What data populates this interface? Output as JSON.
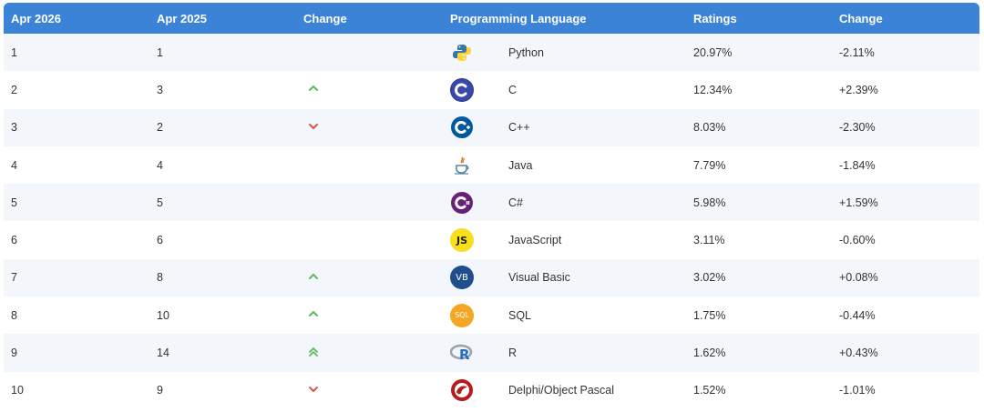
{
  "header": {
    "col_apr2026": "Apr 2026",
    "col_apr2025": "Apr 2025",
    "col_change": "Change",
    "col_language": "Programming Language",
    "col_ratings": "Ratings",
    "col_change2": "Change"
  },
  "colors": {
    "header_bg": "#3b83d6",
    "up_arrow": "#5cb85c",
    "down_arrow": "#d9534f"
  },
  "rows": [
    {
      "rank_2026": "1",
      "rank_2025": "1",
      "trend": "none",
      "language": "Python",
      "icon": "python-icon",
      "rating": "20.97%",
      "change": "-2.11%"
    },
    {
      "rank_2026": "2",
      "rank_2025": "3",
      "trend": "up",
      "language": "C",
      "icon": "c-icon",
      "rating": "12.34%",
      "change": "+2.39%"
    },
    {
      "rank_2026": "3",
      "rank_2025": "2",
      "trend": "down",
      "language": "C++",
      "icon": "cpp-icon",
      "rating": "8.03%",
      "change": "-2.30%"
    },
    {
      "rank_2026": "4",
      "rank_2025": "4",
      "trend": "none",
      "language": "Java",
      "icon": "java-icon",
      "rating": "7.79%",
      "change": "-1.84%"
    },
    {
      "rank_2026": "5",
      "rank_2025": "5",
      "trend": "none",
      "language": "C#",
      "icon": "csharp-icon",
      "rating": "5.98%",
      "change": "+1.59%"
    },
    {
      "rank_2026": "6",
      "rank_2025": "6",
      "trend": "none",
      "language": "JavaScript",
      "icon": "javascript-icon",
      "rating": "3.11%",
      "change": "-0.60%"
    },
    {
      "rank_2026": "7",
      "rank_2025": "8",
      "trend": "up",
      "language": "Visual Basic",
      "icon": "visual-basic-icon",
      "rating": "3.02%",
      "change": "+0.08%"
    },
    {
      "rank_2026": "8",
      "rank_2025": "10",
      "trend": "up",
      "language": "SQL",
      "icon": "sql-icon",
      "rating": "1.75%",
      "change": "-0.44%"
    },
    {
      "rank_2026": "9",
      "rank_2025": "14",
      "trend": "double-up",
      "language": "R",
      "icon": "r-icon",
      "rating": "1.62%",
      "change": "+0.43%"
    },
    {
      "rank_2026": "10",
      "rank_2025": "9",
      "trend": "down",
      "language": "Delphi/Object Pascal",
      "icon": "delphi-icon",
      "rating": "1.52%",
      "change": "-1.01%"
    }
  ],
  "logo_text": {
    "javascript": "JS",
    "visual_basic": "VB",
    "sql": "SQL",
    "r": "R"
  }
}
